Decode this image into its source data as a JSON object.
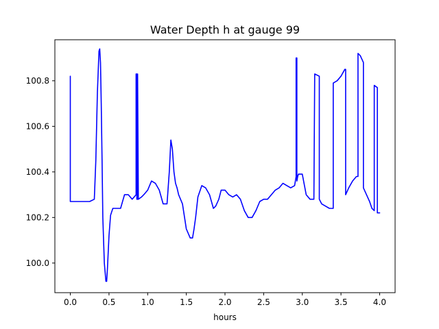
{
  "chart_data": {
    "type": "line",
    "title": "Water Depth h at gauge 99",
    "xlabel": "hours",
    "ylabel": "",
    "xlim": [
      -0.2,
      4.2
    ],
    "ylim": [
      99.87,
      100.98
    ],
    "xticks": [
      0.0,
      0.5,
      1.0,
      1.5,
      2.0,
      2.5,
      3.0,
      3.5,
      4.0
    ],
    "xtick_labels": [
      "0.0",
      "0.5",
      "1.0",
      "1.5",
      "2.0",
      "2.5",
      "3.0",
      "3.5",
      "4.0"
    ],
    "yticks": [
      100.0,
      100.2,
      100.4,
      100.6,
      100.8
    ],
    "ytick_labels": [
      "100.0",
      "100.2",
      "100.4",
      "100.6",
      "100.8"
    ],
    "grid": false,
    "legend": "none",
    "series": [
      {
        "color": "#0000ff",
        "x": [
          0.0,
          0.0,
          0.0,
          0.1,
          0.15,
          0.2,
          0.25,
          0.31,
          0.33,
          0.35,
          0.37,
          0.38,
          0.39,
          0.4,
          0.41,
          0.42,
          0.44,
          0.46,
          0.47,
          0.48,
          0.5,
          0.52,
          0.55,
          0.58,
          0.6,
          0.65,
          0.7,
          0.75,
          0.8,
          0.85,
          0.85,
          0.86,
          0.86,
          0.87,
          0.87,
          0.88,
          0.92,
          0.95,
          1.0,
          1.05,
          1.1,
          1.15,
          1.2,
          1.25,
          1.28,
          1.3,
          1.32,
          1.34,
          1.36,
          1.38,
          1.4,
          1.45,
          1.5,
          1.55,
          1.58,
          1.6,
          1.62,
          1.65,
          1.7,
          1.75,
          1.8,
          1.85,
          1.88,
          1.92,
          1.95,
          2.0,
          2.05,
          2.1,
          2.15,
          2.2,
          2.25,
          2.3,
          2.35,
          2.4,
          2.45,
          2.5,
          2.55,
          2.6,
          2.65,
          2.7,
          2.75,
          2.8,
          2.85,
          2.9,
          2.92,
          2.92,
          2.93,
          2.93,
          2.94,
          2.95,
          2.97,
          3.0,
          3.05,
          3.1,
          3.15,
          3.16,
          3.16,
          3.22,
          3.22,
          3.25,
          3.3,
          3.35,
          3.4,
          3.4,
          3.45,
          3.5,
          3.55,
          3.56,
          3.56,
          3.6,
          3.65,
          3.7,
          3.72,
          3.72,
          3.75,
          3.79,
          3.79,
          3.83,
          3.87,
          3.9,
          3.93,
          3.93,
          3.97,
          3.97,
          3.98,
          4.0
        ],
        "y": [
          100.82,
          100.82,
          100.27,
          100.27,
          100.27,
          100.27,
          100.27,
          100.28,
          100.45,
          100.75,
          100.93,
          100.94,
          100.88,
          100.7,
          100.45,
          100.2,
          100.0,
          99.92,
          99.92,
          99.98,
          100.12,
          100.21,
          100.24,
          100.24,
          100.24,
          100.24,
          100.3,
          100.3,
          100.28,
          100.3,
          100.83,
          100.83,
          100.28,
          100.28,
          100.83,
          100.28,
          100.29,
          100.3,
          100.32,
          100.36,
          100.35,
          100.32,
          100.26,
          100.26,
          100.4,
          100.54,
          100.5,
          100.4,
          100.35,
          100.33,
          100.3,
          100.26,
          100.15,
          100.11,
          100.11,
          100.15,
          100.2,
          100.29,
          100.34,
          100.33,
          100.3,
          100.24,
          100.25,
          100.28,
          100.32,
          100.32,
          100.3,
          100.29,
          100.3,
          100.28,
          100.23,
          100.2,
          100.2,
          100.23,
          100.27,
          100.28,
          100.28,
          100.3,
          100.32,
          100.33,
          100.35,
          100.34,
          100.33,
          100.34,
          100.38,
          100.9,
          100.9,
          100.36,
          100.38,
          100.39,
          100.39,
          100.39,
          100.3,
          100.28,
          100.28,
          100.83,
          100.83,
          100.82,
          100.28,
          100.26,
          100.25,
          100.24,
          100.24,
          100.79,
          100.8,
          100.82,
          100.85,
          100.85,
          100.3,
          100.33,
          100.36,
          100.38,
          100.38,
          100.92,
          100.91,
          100.88,
          100.33,
          100.3,
          100.27,
          100.24,
          100.23,
          100.78,
          100.77,
          100.22,
          100.22,
          100.22
        ]
      }
    ]
  }
}
